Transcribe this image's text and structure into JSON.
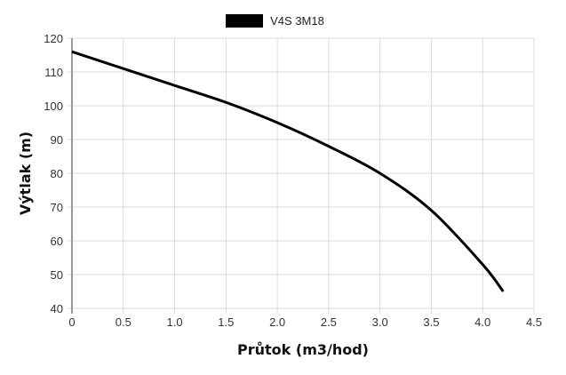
{
  "legend": {
    "label": "V4S 3M18",
    "color": "#000000"
  },
  "axes": {
    "xlabel": "Průtok (m3/hod)",
    "ylabel": "Výtlak (m)",
    "xticks": [
      "0",
      "0.5",
      "1.0",
      "1.5",
      "2.0",
      "2.5",
      "3.0",
      "3.5",
      "4.0",
      "4.5"
    ],
    "yticks": [
      "120",
      "110",
      "100",
      "90",
      "80",
      "70",
      "60",
      "50",
      "40"
    ]
  },
  "chart_data": {
    "type": "line",
    "title": "",
    "xlabel": "Průtok (m3/hod)",
    "ylabel": "Výtlak (m)",
    "xlim": [
      0,
      4.5
    ],
    "ylim": [
      40,
      120
    ],
    "grid": true,
    "legend_position": "top",
    "series": [
      {
        "name": "V4S 3M18",
        "color": "#000000",
        "x": [
          0,
          0.5,
          1.0,
          1.5,
          2.0,
          2.5,
          3.0,
          3.5,
          4.0,
          4.2
        ],
        "values": [
          116,
          111,
          106,
          101,
          95,
          88,
          80,
          69,
          53,
          45
        ]
      }
    ]
  }
}
